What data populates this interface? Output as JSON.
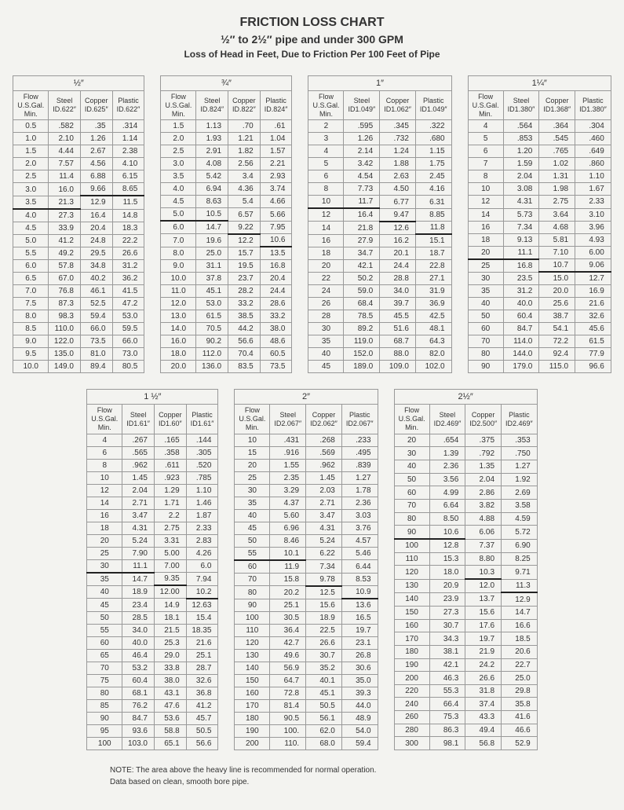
{
  "header": {
    "title": "FRICTION LOSS CHART",
    "subtitle": "½″ to 2½″ pipe and under 300 GPM",
    "subtitle2": "Loss of Head in Feet, Due to Friction Per 100 Feet of Pipe"
  },
  "notes": {
    "note1": "NOTE: The area above the heavy line is recommended for normal operation.",
    "note2": "Data based on clean, smooth bore pipe."
  },
  "tables": [
    {
      "caption": "½″",
      "headers": [
        "Flow\nU.S.Gal.\nMin.",
        "Steel\nID.622″",
        "Copper\nID.625″",
        "Plastic\nID.622″"
      ],
      "rows": [
        [
          "0.5",
          ".582",
          ".35",
          ".314"
        ],
        [
          "1.0",
          "2.10",
          "1.26",
          "1.14"
        ],
        [
          "1.5",
          "4.44",
          "2.67",
          "2.38"
        ],
        [
          "2.0",
          "7.57",
          "4.56",
          "4.10"
        ],
        [
          "2.5",
          "11.4",
          "6.88",
          "6.15"
        ],
        [
          "3.0",
          "16.0",
          "9.66",
          "8.65"
        ],
        [
          "3.5",
          "21.3",
          "12.9",
          "11.5"
        ],
        [
          "4.0",
          "27.3",
          "16.4",
          "14.8"
        ],
        [
          "4.5",
          "33.9",
          "20.4",
          "18.3"
        ],
        [
          "5.0",
          "41.2",
          "24.8",
          "22.2"
        ],
        [
          "5.5",
          "49.2",
          "29.5",
          "26.6"
        ],
        [
          "6.0",
          "57.8",
          "34.8",
          "31.2"
        ],
        [
          "6.5",
          "67.0",
          "40.2",
          "36.2"
        ],
        [
          "7.0",
          "76.8",
          "46.1",
          "41.5"
        ],
        [
          "7.5",
          "87.3",
          "52.5",
          "47.2"
        ],
        [
          "8.0",
          "98.3",
          "59.4",
          "53.0"
        ],
        [
          "8.5",
          "110.0",
          "66.0",
          "59.5"
        ],
        [
          "9.0",
          "122.0",
          "73.5",
          "66.0"
        ],
        [
          "9.5",
          "135.0",
          "81.0",
          "73.0"
        ],
        [
          "10.0",
          "149.0",
          "89.4",
          "80.5"
        ]
      ],
      "heavy": {
        "0": 6,
        "1": 5,
        "2": 5
      }
    },
    {
      "caption": "¾″",
      "headers": [
        "Flow\nU.S.Gal.\nMin.",
        "Steel\nID.824″",
        "Copper\nID.822″",
        "Plastic\nID.824″"
      ],
      "rows": [
        [
          "1.5",
          "1.13",
          ".70",
          ".61"
        ],
        [
          "2.0",
          "1.93",
          "1.21",
          "1.04"
        ],
        [
          "2.5",
          "2.91",
          "1.82",
          "1.57"
        ],
        [
          "3.0",
          "4.08",
          "2.56",
          "2.21"
        ],
        [
          "3.5",
          "5.42",
          "3.4",
          "2.93"
        ],
        [
          "4.0",
          "6.94",
          "4.36",
          "3.74"
        ],
        [
          "4.5",
          "8.63",
          "5.4",
          "4.66"
        ],
        [
          "5.0",
          "10.5",
          "6.57",
          "5.66"
        ],
        [
          "6.0",
          "14.7",
          "9.22",
          "7.95"
        ],
        [
          "7.0",
          "19.6",
          "12.2",
          "10.6"
        ],
        [
          "8.0",
          "25.0",
          "15.7",
          "13.5"
        ],
        [
          "9.0",
          "31.1",
          "19.5",
          "16.8"
        ],
        [
          "10.0",
          "37.8",
          "23.7",
          "20.4"
        ],
        [
          "11.0",
          "45.1",
          "28.2",
          "24.4"
        ],
        [
          "12.0",
          "53.0",
          "33.2",
          "28.6"
        ],
        [
          "13.0",
          "61.5",
          "38.5",
          "33.2"
        ],
        [
          "14.0",
          "70.5",
          "44.2",
          "38.0"
        ],
        [
          "16.0",
          "90.2",
          "56.6",
          "48.6"
        ],
        [
          "18.0",
          "112.0",
          "70.4",
          "60.5"
        ],
        [
          "20.0",
          "136.0",
          "83.5",
          "73.5"
        ]
      ],
      "heavy": {
        "0": 7,
        "1": 8,
        "2": 9
      }
    },
    {
      "caption": "1″",
      "headers": [
        "Flow\nU.S.Gal.\nMin.",
        "Steel\nID1.049″",
        "Copper\nID1.062″",
        "Plastic\nID1.049″"
      ],
      "rows": [
        [
          "2",
          ".595",
          ".345",
          ".322"
        ],
        [
          "3",
          "1.26",
          ".732",
          ".680"
        ],
        [
          "4",
          "2.14",
          "1.24",
          "1.15"
        ],
        [
          "5",
          "3.42",
          "1.88",
          "1.75"
        ],
        [
          "6",
          "4.54",
          "2.63",
          "2.45"
        ],
        [
          "8",
          "7.73",
          "4.50",
          "4.16"
        ],
        [
          "10",
          "11.7",
          "6.77",
          "6.31"
        ],
        [
          "12",
          "16.4",
          "9.47",
          "8.85"
        ],
        [
          "14",
          "21.8",
          "12.6",
          "11.8"
        ],
        [
          "16",
          "27.9",
          "16.2",
          "15.1"
        ],
        [
          "18",
          "34.7",
          "20.1",
          "18.7"
        ],
        [
          "20",
          "42.1",
          "24.4",
          "22.8"
        ],
        [
          "22",
          "50.2",
          "28.8",
          "27.1"
        ],
        [
          "24",
          "59.0",
          "34.0",
          "31.9"
        ],
        [
          "26",
          "68.4",
          "39.7",
          "36.9"
        ],
        [
          "28",
          "78.5",
          "45.5",
          "42.5"
        ],
        [
          "30",
          "89.2",
          "51.6",
          "48.1"
        ],
        [
          "35",
          "119.0",
          "68.7",
          "64.3"
        ],
        [
          "40",
          "152.0",
          "88.0",
          "82.0"
        ],
        [
          "45",
          "189.0",
          "109.0",
          "102.0"
        ]
      ],
      "heavy": {
        "0": 6,
        "1": 7,
        "2": 8
      }
    },
    {
      "caption": "1¼″",
      "headers": [
        "Flow\nU.S.Gal.\nMin.",
        "Steel\nID1.380″",
        "Copper\nID1.368″",
        "Plastic\nID1.380″"
      ],
      "rows": [
        [
          "4",
          ".564",
          ".364",
          ".304"
        ],
        [
          "5",
          ".853",
          ".545",
          ".460"
        ],
        [
          "6",
          "1.20",
          ".765",
          ".649"
        ],
        [
          "7",
          "1.59",
          "1.02",
          ".860"
        ],
        [
          "8",
          "2.04",
          "1.31",
          "1.10"
        ],
        [
          "10",
          "3.08",
          "1.98",
          "1.67"
        ],
        [
          "12",
          "4.31",
          "2.75",
          "2.33"
        ],
        [
          "14",
          "5.73",
          "3.64",
          "3.10"
        ],
        [
          "16",
          "7.34",
          "4.68",
          "3.96"
        ],
        [
          "18",
          "9.13",
          "5.81",
          "4.93"
        ],
        [
          "20",
          "11.1",
          "7.10",
          "6.00"
        ],
        [
          "25",
          "16.8",
          "10.7",
          "9.06"
        ],
        [
          "30",
          "23.5",
          "15.0",
          "12.7"
        ],
        [
          "35",
          "31.2",
          "20.0",
          "16.9"
        ],
        [
          "40",
          "40.0",
          "25.6",
          "21.6"
        ],
        [
          "50",
          "60.4",
          "38.7",
          "32.6"
        ],
        [
          "60",
          "84.7",
          "54.1",
          "45.6"
        ],
        [
          "70",
          "114.0",
          "72.2",
          "61.5"
        ],
        [
          "80",
          "144.0",
          "92.4",
          "77.9"
        ],
        [
          "90",
          "179.0",
          "115.0",
          "96.6"
        ]
      ],
      "heavy": {
        "0": 10,
        "1": 11,
        "2": 11
      }
    },
    {
      "caption": "1 ½″",
      "headers": [
        "Flow\nU.S.Gal.\nMin.",
        "Steel\nID1.61″",
        "Copper\nID1.60″",
        "Plastic\nID1.61″"
      ],
      "rows": [
        [
          "4",
          ".267",
          ".165",
          ".144"
        ],
        [
          "6",
          ".565",
          ".358",
          ".305"
        ],
        [
          "8",
          ".962",
          ".611",
          ".520"
        ],
        [
          "10",
          "1.45",
          ".923",
          ".785"
        ],
        [
          "12",
          "2.04",
          "1.29",
          "1.10"
        ],
        [
          "14",
          "2.71",
          "1.71",
          "1.46"
        ],
        [
          "16",
          "3.47",
          "2.2",
          "1.87"
        ],
        [
          "18",
          "4.31",
          "2.75",
          "2.33"
        ],
        [
          "20",
          "5.24",
          "3.31",
          "2.83"
        ],
        [
          "25",
          "7.90",
          "5.00",
          "4.26"
        ],
        [
          "30",
          "11.1",
          "7.00",
          "6.0"
        ],
        [
          "35",
          "14.7",
          "9.35",
          "7.94"
        ],
        [
          "40",
          "18.9",
          "12.00",
          "10.2"
        ],
        [
          "45",
          "23.4",
          "14.9",
          "12.63"
        ],
        [
          "50",
          "28.5",
          "18.1",
          "15.4"
        ],
        [
          "55",
          "34.0",
          "21.5",
          "18.35"
        ],
        [
          "60",
          "40.0",
          "25.3",
          "21.6"
        ],
        [
          "65",
          "46.4",
          "29.0",
          "25.1"
        ],
        [
          "70",
          "53.2",
          "33.8",
          "28.7"
        ],
        [
          "75",
          "60.4",
          "38.0",
          "32.6"
        ],
        [
          "80",
          "68.1",
          "43.1",
          "36.8"
        ],
        [
          "85",
          "76.2",
          "47.6",
          "41.2"
        ],
        [
          "90",
          "84.7",
          "53.6",
          "45.7"
        ],
        [
          "95",
          "93.6",
          "58.8",
          "50.5"
        ],
        [
          "100",
          "103.0",
          "65.1",
          "56.6"
        ]
      ],
      "heavy": {
        "0": 10,
        "1": 11,
        "2": 12
      }
    },
    {
      "caption": "2″",
      "headers": [
        "Flow\nU.S.Gal.\nMin.",
        "Steel\nID2.067″",
        "Copper\nID2.062″",
        "Plastic\nID2.067″"
      ],
      "rows": [
        [
          "10",
          ".431",
          ".268",
          ".233"
        ],
        [
          "15",
          ".916",
          ".569",
          ".495"
        ],
        [
          "20",
          "1.55",
          ".962",
          ".839"
        ],
        [
          "25",
          "2.35",
          "1.45",
          "1.27"
        ],
        [
          "30",
          "3.29",
          "2.03",
          "1.78"
        ],
        [
          "35",
          "4.37",
          "2.71",
          "2.36"
        ],
        [
          "40",
          "5.60",
          "3.47",
          "3.03"
        ],
        [
          "45",
          "6.96",
          "4.31",
          "3.76"
        ],
        [
          "50",
          "8.46",
          "5.24",
          "4.57"
        ],
        [
          "55",
          "10.1",
          "6.22",
          "5.46"
        ],
        [
          "60",
          "11.9",
          "7.34",
          "6.44"
        ],
        [
          "70",
          "15.8",
          "9.78",
          "8.53"
        ],
        [
          "80",
          "20.2",
          "12.5",
          "10.9"
        ],
        [
          "90",
          "25.1",
          "15.6",
          "13.6"
        ],
        [
          "100",
          "30.5",
          "18.9",
          "16.5"
        ],
        [
          "110",
          "36.4",
          "22.5",
          "19.7"
        ],
        [
          "120",
          "42.7",
          "26.6",
          "23.1"
        ],
        [
          "130",
          "49.6",
          "30.7",
          "26.8"
        ],
        [
          "140",
          "56.9",
          "35.2",
          "30.6"
        ],
        [
          "150",
          "64.7",
          "40.1",
          "35.0"
        ],
        [
          "160",
          "72.8",
          "45.1",
          "39.3"
        ],
        [
          "170",
          "81.4",
          "50.5",
          "44.0"
        ],
        [
          "180",
          "90.5",
          "56.1",
          "48.9"
        ],
        [
          "190",
          "100.",
          "62.0",
          "54.0"
        ],
        [
          "200",
          "110.",
          "68.0",
          "59.4"
        ]
      ],
      "heavy": {
        "0": 9,
        "1": 11,
        "2": 12
      }
    },
    {
      "caption": "2½″",
      "headers": [
        "Flow\nU.S.Gal.\nMin.",
        "Steel\nID2.469″",
        "Copper\nID2.500″",
        "Plastic\nID2.469″"
      ],
      "rows": [
        [
          "20",
          ".654",
          ".375",
          ".353"
        ],
        [
          "30",
          "1.39",
          ".792",
          ".750"
        ],
        [
          "40",
          "2.36",
          "1.35",
          "1.27"
        ],
        [
          "50",
          "3.56",
          "2.04",
          "1.92"
        ],
        [
          "60",
          "4.99",
          "2.86",
          "2.69"
        ],
        [
          "70",
          "6.64",
          "3.82",
          "3.58"
        ],
        [
          "80",
          "8.50",
          "4.88",
          "4.59"
        ],
        [
          "90",
          "10.6",
          "6.06",
          "5.72"
        ],
        [
          "100",
          "12.8",
          "7.37",
          "6.90"
        ],
        [
          "110",
          "15.3",
          "8.80",
          "8.25"
        ],
        [
          "120",
          "18.0",
          "10.3",
          "9.71"
        ],
        [
          "130",
          "20.9",
          "12.0",
          "11.3"
        ],
        [
          "140",
          "23.9",
          "13.7",
          "12.9"
        ],
        [
          "150",
          "27.3",
          "15.6",
          "14.7"
        ],
        [
          "160",
          "30.7",
          "17.6",
          "16.6"
        ],
        [
          "170",
          "34.3",
          "19.7",
          "18.5"
        ],
        [
          "180",
          "38.1",
          "21.9",
          "20.6"
        ],
        [
          "190",
          "42.1",
          "24.2",
          "22.7"
        ],
        [
          "200",
          "46.3",
          "26.6",
          "25.0"
        ],
        [
          "220",
          "55.3",
          "31.8",
          "29.8"
        ],
        [
          "240",
          "66.4",
          "37.4",
          "35.8"
        ],
        [
          "260",
          "75.3",
          "43.3",
          "41.6"
        ],
        [
          "280",
          "86.3",
          "49.4",
          "46.6"
        ],
        [
          "300",
          "98.1",
          "56.8",
          "52.9"
        ]
      ],
      "heavy": {
        "0": 7,
        "1": 10,
        "2": 11
      }
    }
  ]
}
